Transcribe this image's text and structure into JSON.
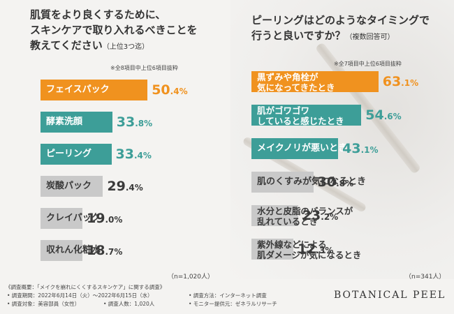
{
  "left": {
    "title_line1": "肌質をより良くするために、",
    "title_line2": "スキンケアで取り入れるべきことを",
    "title_line3": "教えてください",
    "title_sub": "（上位3つ迄）",
    "note": "※全8項目中上位6項目抜粋",
    "n": "（n=1,020人）"
  },
  "right": {
    "title_line1": "ピーリングはどのようなタイミングで",
    "title_line2": "行うと良いですか？",
    "title_sub": "（複数回答可）",
    "note": "※全7項目中上位6項目抜粋",
    "n": "（n=341人）"
  },
  "footer": {
    "heading": "《調査概要：「メイクを崩れにくくするスキンケア」に関する調査》",
    "period": "• 調査期間：2022年6月14日（火）〜2022年6月15日（水）",
    "method": "• 調査方法：インターネット調査",
    "target": "• 調査対象：美容部員（女性）",
    "count": "• 調査人数：1,020人",
    "monitor": "• モニター提供元：ゼネラルリサーチ",
    "brand": "BOTANICAL PEEL"
  },
  "colors": {
    "orange": "#f0921f",
    "teal": "#3d9e98",
    "gray": "#c9c9c9",
    "dark_text": "#3a3a3a"
  },
  "chart_data": [
    {
      "type": "bar",
      "orientation": "horizontal",
      "title": "肌質をより良くするために、スキンケアで取り入れるべきことを教えてください（上位3つ迄）",
      "unit": "%",
      "xlim": [
        0,
        100
      ],
      "categories": [
        "フェイスパック",
        "酵素洗顔",
        "ピーリング",
        "炭酸パック",
        "クレイパック",
        "収れん化粧水"
      ],
      "values": [
        50.4,
        33.8,
        33.4,
        29.4,
        19.0,
        18.7
      ],
      "value_int": [
        "50",
        "33",
        "33",
        "29",
        "19",
        "18"
      ],
      "value_dec": [
        ".4%",
        ".8%",
        ".4%",
        ".4%",
        ".0%",
        ".7%"
      ],
      "colors": [
        "orange",
        "teal",
        "teal",
        "gray",
        "gray",
        "gray"
      ]
    },
    {
      "type": "bar",
      "orientation": "horizontal",
      "title": "ピーリングはどのようなタイミングで行うと良いですか？（複数回答可）",
      "unit": "%",
      "xlim": [
        0,
        100
      ],
      "categories": [
        [
          "黒ずみや角栓が",
          "気になってきたとき"
        ],
        [
          "肌がゴワゴワ",
          "していると感じたとき"
        ],
        [
          "メイクノリが悪いとき"
        ],
        [
          "肌のくすみが気になるとき"
        ],
        [
          "水分と皮脂のバランスが",
          "乱れているとき"
        ],
        [
          "紫外線などによる",
          "肌ダメージが気になるとき"
        ]
      ],
      "values": [
        63.1,
        54.6,
        43.1,
        30.8,
        23.2,
        12.3
      ],
      "value_int": [
        "63",
        "54",
        "43",
        "30",
        "23",
        "12"
      ],
      "value_dec": [
        ".1%",
        ".6%",
        ".1%",
        ".8%",
        ".2%",
        ".3%"
      ],
      "colors": [
        "orange",
        "teal",
        "teal",
        "gray",
        "gray",
        "gray"
      ]
    }
  ]
}
